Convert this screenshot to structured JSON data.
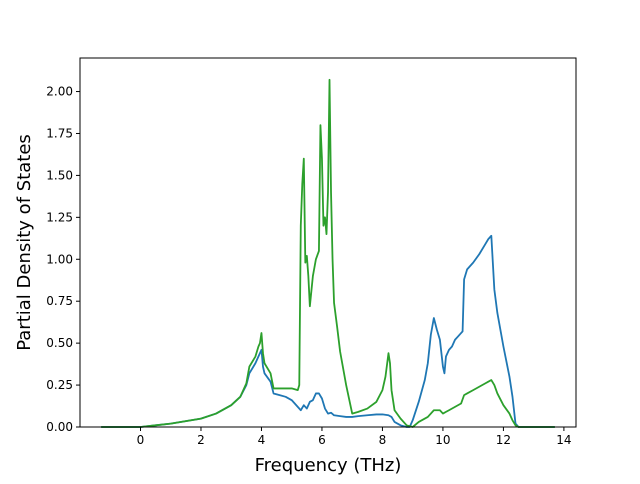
{
  "chart_data": {
    "type": "line",
    "title": "",
    "xlabel": "Frequency (THz)",
    "ylabel": "Partial Density of States",
    "xlim": [
      -2.0,
      14.4
    ],
    "ylim": [
      0.0,
      2.2
    ],
    "xticks": [
      0,
      2,
      4,
      6,
      8,
      10,
      12,
      14
    ],
    "xtick_labels": [
      "0",
      "2",
      "4",
      "6",
      "8",
      "10",
      "12",
      "14"
    ],
    "yticks": [
      0.0,
      0.25,
      0.5,
      0.75,
      1.0,
      1.25,
      1.5,
      1.75,
      2.0
    ],
    "ytick_labels": [
      "0.00",
      "0.25",
      "0.50",
      "0.75",
      "1.00",
      "1.25",
      "1.50",
      "1.75",
      "2.00"
    ],
    "grid": false,
    "legend": "none",
    "series": [
      {
        "color": "#1f77b4",
        "x": [
          -1.3,
          0.0,
          0.5,
          1.0,
          1.5,
          2.0,
          2.5,
          3.0,
          3.3,
          3.5,
          3.6,
          3.8,
          3.9,
          4.0,
          4.05,
          4.1,
          4.3,
          4.4,
          4.6,
          4.8,
          5.0,
          5.2,
          5.3,
          5.4,
          5.5,
          5.6,
          5.7,
          5.8,
          5.9,
          6.0,
          6.1,
          6.2,
          6.3,
          6.4,
          6.6,
          6.8,
          7.0,
          7.2,
          7.5,
          7.8,
          8.0,
          8.2,
          8.3,
          8.4,
          8.6,
          8.8,
          8.9,
          9.0,
          9.2,
          9.4,
          9.5,
          9.6,
          9.7,
          9.8,
          9.9,
          10.0,
          10.05,
          10.1,
          10.2,
          10.3,
          10.4,
          10.5,
          10.6,
          10.65,
          10.7,
          10.8,
          11.0,
          11.2,
          11.4,
          11.5,
          11.6,
          11.7,
          11.8,
          12.0,
          12.2,
          12.3,
          12.4,
          12.5,
          13.7
        ],
        "y": [
          0.0,
          0.0,
          0.01,
          0.02,
          0.035,
          0.05,
          0.08,
          0.13,
          0.18,
          0.25,
          0.32,
          0.38,
          0.42,
          0.46,
          0.36,
          0.32,
          0.27,
          0.2,
          0.19,
          0.18,
          0.16,
          0.12,
          0.1,
          0.13,
          0.11,
          0.15,
          0.16,
          0.2,
          0.2,
          0.17,
          0.11,
          0.08,
          0.085,
          0.07,
          0.065,
          0.06,
          0.06,
          0.065,
          0.07,
          0.075,
          0.075,
          0.07,
          0.06,
          0.03,
          0.01,
          0.0,
          0.0,
          0.04,
          0.15,
          0.28,
          0.38,
          0.55,
          0.65,
          0.58,
          0.52,
          0.36,
          0.32,
          0.42,
          0.46,
          0.48,
          0.52,
          0.54,
          0.56,
          0.57,
          0.88,
          0.94,
          0.98,
          1.03,
          1.09,
          1.12,
          1.14,
          0.82,
          0.68,
          0.48,
          0.3,
          0.18,
          0.02,
          0.0,
          0.0
        ]
      },
      {
        "color": "#2ca02c",
        "x": [
          -1.3,
          0.0,
          0.5,
          1.0,
          1.5,
          2.0,
          2.5,
          3.0,
          3.3,
          3.5,
          3.6,
          3.8,
          3.9,
          3.95,
          4.0,
          4.05,
          4.1,
          4.3,
          4.4,
          4.6,
          4.8,
          5.0,
          5.2,
          5.25,
          5.3,
          5.35,
          5.4,
          5.45,
          5.5,
          5.55,
          5.6,
          5.7,
          5.8,
          5.9,
          5.95,
          6.0,
          6.05,
          6.1,
          6.15,
          6.2,
          6.25,
          6.3,
          6.35,
          6.4,
          6.5,
          6.6,
          6.8,
          7.0,
          7.2,
          7.5,
          7.8,
          8.0,
          8.1,
          8.2,
          8.25,
          8.3,
          8.4,
          8.6,
          8.8,
          9.0,
          9.2,
          9.5,
          9.7,
          9.9,
          10.0,
          10.1,
          10.2,
          10.4,
          10.6,
          10.7,
          10.8,
          11.0,
          11.2,
          11.4,
          11.5,
          11.6,
          11.7,
          11.8,
          12.0,
          12.2,
          12.3,
          12.4,
          12.5,
          13.7
        ],
        "y": [
          0.0,
          0.0,
          0.01,
          0.02,
          0.035,
          0.05,
          0.08,
          0.13,
          0.18,
          0.26,
          0.36,
          0.42,
          0.48,
          0.5,
          0.56,
          0.44,
          0.38,
          0.32,
          0.23,
          0.23,
          0.23,
          0.23,
          0.22,
          0.25,
          1.2,
          1.45,
          1.6,
          0.98,
          1.02,
          0.9,
          0.72,
          0.9,
          1.0,
          1.05,
          1.8,
          1.6,
          1.2,
          1.25,
          1.15,
          1.4,
          2.07,
          1.4,
          1.0,
          0.74,
          0.6,
          0.45,
          0.25,
          0.08,
          0.09,
          0.11,
          0.15,
          0.22,
          0.3,
          0.44,
          0.38,
          0.22,
          0.1,
          0.05,
          0.01,
          0.0,
          0.03,
          0.06,
          0.1,
          0.1,
          0.08,
          0.09,
          0.1,
          0.12,
          0.14,
          0.19,
          0.2,
          0.22,
          0.24,
          0.26,
          0.27,
          0.28,
          0.25,
          0.2,
          0.13,
          0.08,
          0.04,
          0.01,
          0.0,
          0.0
        ]
      }
    ]
  }
}
